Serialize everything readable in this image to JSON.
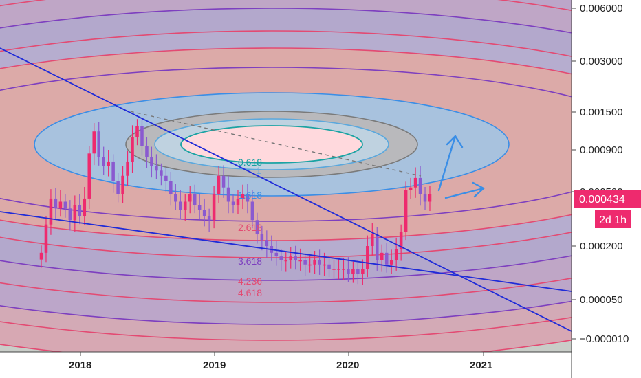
{
  "chart_data": {
    "type": "candlestick",
    "symbol_price_label": "0.000434",
    "countdown_label": "2d 1h",
    "y_axis": {
      "scale": "log",
      "ticks": [
        "0.006000",
        "0.003000",
        "0.001500",
        "0.000900",
        "0.000500",
        "0.000200",
        "0.000050",
        "−0.000010"
      ]
    },
    "x_axis": {
      "ticks": [
        "2018",
        "2019",
        "2020",
        "2021"
      ]
    },
    "fib_levels": [
      "0.618",
      "1",
      "1.618",
      "2.618",
      "3.618",
      "4.236",
      "4.618"
    ],
    "series": [
      {
        "values": [
          0.00018,
          0.00028,
          0.00042,
          0.00036,
          0.0004,
          0.00036,
          0.0003,
          0.00038,
          0.00032,
          0.00042,
          0.00085,
          0.0012,
          0.0008,
          0.0007,
          0.00075,
          0.00055,
          0.00045,
          0.0006,
          0.00075,
          0.0011,
          0.0013,
          0.00095,
          0.0008,
          0.0007,
          0.00065,
          0.0006,
          0.00055,
          0.00045,
          0.0004,
          0.00035,
          0.0004,
          0.00045,
          0.00038,
          0.00035,
          0.00032,
          0.0003,
          0.00045,
          0.0006,
          0.0005,
          0.0004,
          0.00038,
          0.00042,
          0.00045,
          0.0004,
          0.0003,
          0.00024,
          0.00022,
          0.0002,
          0.00018,
          0.00017,
          0.00016,
          0.00016,
          0.00017,
          0.00016,
          0.00016,
          0.00015,
          0.00015,
          0.00016,
          0.00015,
          0.00015,
          0.00014,
          0.00014,
          0.00014,
          0.00014,
          0.00013,
          0.00014,
          0.00013,
          0.00014,
          0.0002,
          0.00024,
          0.00016,
          0.00018,
          0.00015,
          0.00016,
          0.00019,
          0.00025,
          0.00048,
          0.0005,
          0.00058,
          0.00045,
          0.0004,
          0.00045
        ]
      }
    ],
    "colors": {
      "up": "#ee2a6e",
      "down": "#8a5ad0",
      "trendline": "#1f2bd8",
      "arrow": "#3a8ee6",
      "price_tag": "#ee2a6e"
    }
  }
}
